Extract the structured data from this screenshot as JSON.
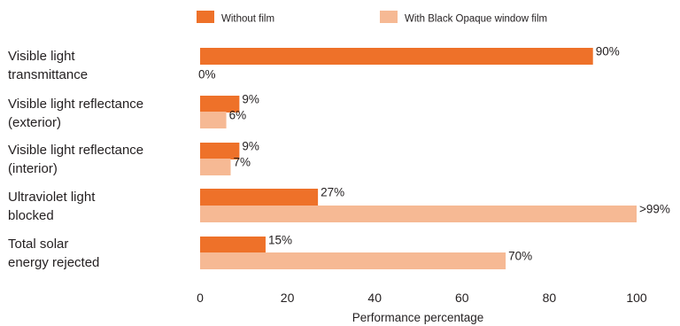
{
  "chart_data": {
    "type": "bar",
    "orientation": "horizontal",
    "categories": [
      [
        "Visible light",
        "transmittance"
      ],
      [
        "Visible light reflectance",
        "(exterior)"
      ],
      [
        "Visible light reflectance",
        "(interior)"
      ],
      [
        "Ultraviolet light",
        "blocked"
      ],
      [
        "Total solar",
        "energy rejected"
      ]
    ],
    "series": [
      {
        "name": "Without film",
        "color": "#ee7129",
        "values": [
          90,
          9,
          9,
          27,
          15
        ],
        "data_labels": [
          "90%",
          "9%",
          "9%",
          "27%",
          "15%"
        ]
      },
      {
        "name": "With Black Opaque window film",
        "name_parts": [
          "With ",
          "Black Opaque",
          " window film"
        ],
        "color": "#f6b994",
        "values": [
          0,
          6,
          7,
          100,
          70
        ],
        "data_labels": [
          "0%",
          "6%",
          "7%",
          ">99%",
          "70%"
        ]
      }
    ],
    "xlabel": "Performance percentage",
    "xlim": [
      0,
      100
    ],
    "xticks": [
      0,
      20,
      40,
      60,
      80,
      100
    ],
    "legend_position": "top",
    "grid": false
  }
}
